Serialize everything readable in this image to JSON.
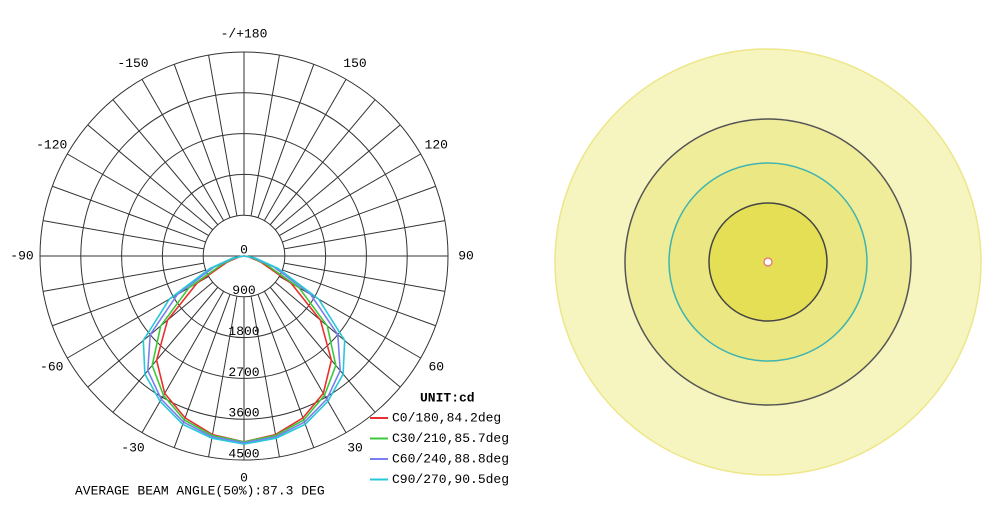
{
  "chart_data": {
    "type": "polar",
    "x": [
      -90,
      -80,
      -70,
      -60,
      -50,
      -40,
      -30,
      -20,
      -10,
      0,
      10,
      20,
      30,
      40,
      50,
      60,
      70,
      80,
      90
    ],
    "series": [
      {
        "name": "C0/180,84.2deg",
        "color": "#e8312f",
        "values": [
          0,
          100,
          400,
          1200,
          2200,
          3000,
          3500,
          3800,
          4000,
          4100,
          4000,
          3800,
          3500,
          3000,
          2200,
          1200,
          400,
          100,
          0
        ]
      },
      {
        "name": "C30/210,85.7deg",
        "color": "#3cc83c",
        "values": [
          0,
          150,
          500,
          1400,
          2400,
          3150,
          3550,
          3850,
          4020,
          4100,
          4020,
          3850,
          3550,
          3150,
          2400,
          1400,
          500,
          150,
          0
        ]
      },
      {
        "name": "C60/240,88.8deg",
        "color": "#7a7ef0",
        "values": [
          0,
          200,
          700,
          1700,
          2700,
          3300,
          3650,
          3900,
          4050,
          4120,
          4050,
          3900,
          3650,
          3300,
          2700,
          1700,
          700,
          200,
          0
        ]
      },
      {
        "name": "C90/270,90.5deg",
        "color": "#27c8d8",
        "values": [
          0,
          250,
          800,
          1900,
          2900,
          3400,
          3700,
          3950,
          4080,
          4150,
          4080,
          3950,
          3700,
          3400,
          2900,
          1900,
          800,
          250,
          0
        ]
      }
    ],
    "xlim": [
      -180,
      180
    ],
    "xticks": [
      0,
      30,
      60,
      90,
      120,
      150,
      {
        "value": 180,
        "label": "-/+180"
      },
      -150,
      -120,
      -90,
      -60,
      -30
    ],
    "ylim": [
      0,
      4500
    ],
    "yticks": [
      0,
      900,
      1800,
      2700,
      3600,
      4500
    ],
    "grid": true,
    "unit_label": "UNIT:cd",
    "annotation": "AVERAGE BEAM ANGLE(50%):87.3 DEG"
  }
}
